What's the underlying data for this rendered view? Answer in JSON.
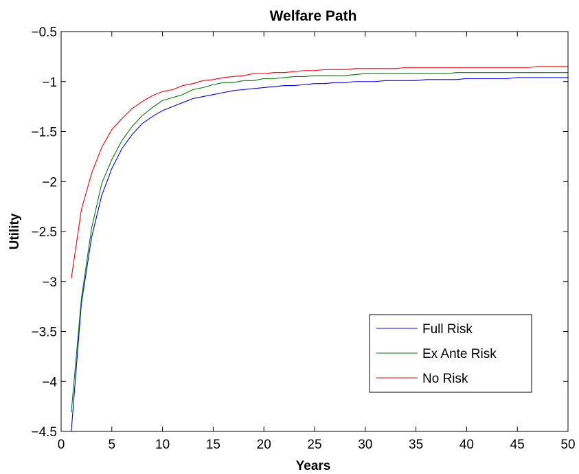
{
  "chart_data": {
    "type": "line",
    "title": "Welfare Path",
    "xlabel": "Years",
    "ylabel": "Utility",
    "xlim": [
      0,
      50
    ],
    "ylim": [
      -4.5,
      -0.5
    ],
    "xticks": [
      0,
      5,
      10,
      15,
      20,
      25,
      30,
      35,
      40,
      45,
      50
    ],
    "xtick_labels": [
      "0",
      "5",
      "10",
      "15",
      "20",
      "25",
      "30",
      "35",
      "40",
      "45",
      "50"
    ],
    "yticks": [
      -4.5,
      -4,
      -3.5,
      -3,
      -2.5,
      -2,
      -1.5,
      -1,
      -0.5
    ],
    "ytick_labels": [
      "−4.5",
      "−4",
      "−3.5",
      "−3",
      "−2.5",
      "−2",
      "−1.5",
      "−1",
      "−0.5"
    ],
    "grid": false,
    "legend_position": "bottom-right",
    "series": [
      {
        "name": "Full Risk",
        "color": "#0000ff",
        "x": [
          1,
          2,
          3,
          4,
          5,
          6,
          7,
          8,
          9,
          10,
          11,
          12,
          13,
          14,
          15,
          16,
          17,
          18,
          19,
          20,
          21,
          22,
          23,
          24,
          25,
          26,
          27,
          28,
          29,
          30,
          31,
          32,
          33,
          34,
          35,
          36,
          37,
          38,
          39,
          40,
          41,
          42,
          43,
          44,
          45,
          46,
          47,
          48,
          49,
          50
        ],
        "values": [
          -4.5,
          -3.22,
          -2.56,
          -2.14,
          -1.87,
          -1.67,
          -1.53,
          -1.42,
          -1.35,
          -1.29,
          -1.25,
          -1.21,
          -1.17,
          -1.15,
          -1.13,
          -1.11,
          -1.09,
          -1.08,
          -1.07,
          -1.06,
          -1.05,
          -1.04,
          -1.04,
          -1.03,
          -1.02,
          -1.02,
          -1.01,
          -1.01,
          -1.0,
          -1.0,
          -1.0,
          -0.99,
          -0.99,
          -0.99,
          -0.99,
          -0.98,
          -0.98,
          -0.98,
          -0.98,
          -0.97,
          -0.97,
          -0.97,
          -0.97,
          -0.97,
          -0.96,
          -0.96,
          -0.96,
          -0.96,
          -0.96,
          -0.96
        ]
      },
      {
        "name": "Ex Ante Risk",
        "color": "#007f00",
        "x": [
          1,
          2,
          3,
          4,
          5,
          6,
          7,
          8,
          9,
          10,
          11,
          12,
          13,
          14,
          15,
          16,
          17,
          18,
          19,
          20,
          21,
          22,
          23,
          24,
          25,
          26,
          27,
          28,
          29,
          30,
          31,
          32,
          33,
          34,
          35,
          36,
          37,
          38,
          39,
          40,
          41,
          42,
          43,
          44,
          45,
          46,
          47,
          48,
          49,
          50
        ],
        "values": [
          -4.31,
          -3.17,
          -2.47,
          -2.02,
          -1.78,
          -1.59,
          -1.45,
          -1.34,
          -1.26,
          -1.19,
          -1.16,
          -1.13,
          -1.08,
          -1.06,
          -1.03,
          -1.01,
          -1.01,
          -0.99,
          -0.99,
          -0.97,
          -0.97,
          -0.96,
          -0.95,
          -0.95,
          -0.94,
          -0.94,
          -0.94,
          -0.94,
          -0.93,
          -0.92,
          -0.92,
          -0.92,
          -0.92,
          -0.92,
          -0.92,
          -0.92,
          -0.92,
          -0.92,
          -0.91,
          -0.91,
          -0.91,
          -0.91,
          -0.91,
          -0.91,
          -0.91,
          -0.91,
          -0.91,
          -0.91,
          -0.91,
          -0.91
        ]
      },
      {
        "name": "No Risk",
        "color": "#ff0000",
        "x": [
          1,
          2,
          3,
          4,
          5,
          6,
          7,
          8,
          9,
          10,
          11,
          12,
          13,
          14,
          15,
          16,
          17,
          18,
          19,
          20,
          21,
          22,
          23,
          24,
          25,
          26,
          27,
          28,
          29,
          30,
          31,
          32,
          33,
          34,
          35,
          36,
          37,
          38,
          39,
          40,
          41,
          42,
          43,
          44,
          45,
          46,
          47,
          48,
          49,
          50
        ],
        "values": [
          -2.97,
          -2.28,
          -1.92,
          -1.66,
          -1.48,
          -1.37,
          -1.27,
          -1.2,
          -1.14,
          -1.1,
          -1.08,
          -1.04,
          -1.02,
          -0.99,
          -0.98,
          -0.96,
          -0.95,
          -0.94,
          -0.92,
          -0.92,
          -0.91,
          -0.91,
          -0.9,
          -0.89,
          -0.89,
          -0.88,
          -0.88,
          -0.88,
          -0.87,
          -0.87,
          -0.87,
          -0.87,
          -0.87,
          -0.86,
          -0.86,
          -0.86,
          -0.86,
          -0.86,
          -0.86,
          -0.86,
          -0.86,
          -0.86,
          -0.86,
          -0.86,
          -0.86,
          -0.86,
          -0.85,
          -0.85,
          -0.85,
          -0.85
        ]
      }
    ]
  }
}
